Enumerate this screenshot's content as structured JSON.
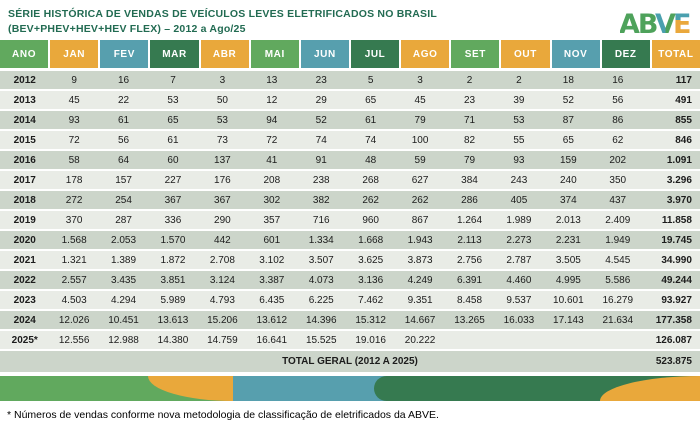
{
  "header": {
    "title_line1": "SÉRIE HISTÓRICA DE VENDAS DE VEÍCULOS LEVES ELETRIFICADOS NO BRASIL",
    "title_line2": "(BEV+PHEV+HEV+HEV FLEX) – 2012 a Ago/25",
    "logo_text": "ABVE"
  },
  "colors": {
    "green": "#61a95e",
    "orange": "#e9a83b",
    "teal": "#579fae",
    "dark_green": "#367a50",
    "title_green": "#226b52",
    "row_dark": "#ccd5ca",
    "row_light": "#e9ece6",
    "logo_green": "#4ea25b",
    "logo_teal": "#4aa0af",
    "logo_orange": "#eaa83c"
  },
  "chart_data": {
    "type": "table",
    "title": "SÉRIE HISTÓRICA DE VENDAS DE VEÍCULOS LEVES ELETRIFICADOS NO BRASIL (BEV+PHEV+HEV+HEV FLEX) – 2012 a Ago/25",
    "columns": [
      {
        "label": "ANO",
        "color": "green"
      },
      {
        "label": "JAN",
        "color": "orange"
      },
      {
        "label": "FEV",
        "color": "teal"
      },
      {
        "label": "MAR",
        "color": "dark_green"
      },
      {
        "label": "ABR",
        "color": "orange"
      },
      {
        "label": "MAI",
        "color": "green"
      },
      {
        "label": "JUN",
        "color": "teal"
      },
      {
        "label": "JUL",
        "color": "dark_green"
      },
      {
        "label": "AGO",
        "color": "orange"
      },
      {
        "label": "SET",
        "color": "green"
      },
      {
        "label": "OUT",
        "color": "orange"
      },
      {
        "label": "NOV",
        "color": "teal"
      },
      {
        "label": "DEZ",
        "color": "dark_green"
      },
      {
        "label": "TOTAL",
        "color": "orange"
      }
    ],
    "rows": [
      {
        "year": "2012",
        "values": [
          "9",
          "16",
          "7",
          "3",
          "13",
          "23",
          "5",
          "3",
          "2",
          "2",
          "18",
          "16"
        ],
        "total": "117"
      },
      {
        "year": "2013",
        "values": [
          "45",
          "22",
          "53",
          "50",
          "12",
          "29",
          "65",
          "45",
          "23",
          "39",
          "52",
          "56"
        ],
        "total": "491"
      },
      {
        "year": "2014",
        "values": [
          "93",
          "61",
          "65",
          "53",
          "94",
          "52",
          "61",
          "79",
          "71",
          "53",
          "87",
          "86"
        ],
        "total": "855"
      },
      {
        "year": "2015",
        "values": [
          "72",
          "56",
          "61",
          "73",
          "72",
          "74",
          "74",
          "100",
          "82",
          "55",
          "65",
          "62"
        ],
        "total": "846"
      },
      {
        "year": "2016",
        "values": [
          "58",
          "64",
          "60",
          "137",
          "41",
          "91",
          "48",
          "59",
          "79",
          "93",
          "159",
          "202"
        ],
        "total": "1.091"
      },
      {
        "year": "2017",
        "values": [
          "178",
          "157",
          "227",
          "176",
          "208",
          "238",
          "268",
          "627",
          "384",
          "243",
          "240",
          "350"
        ],
        "total": "3.296"
      },
      {
        "year": "2018",
        "values": [
          "272",
          "254",
          "367",
          "367",
          "302",
          "382",
          "262",
          "262",
          "286",
          "405",
          "374",
          "437"
        ],
        "total": "3.970"
      },
      {
        "year": "2019",
        "values": [
          "370",
          "287",
          "336",
          "290",
          "357",
          "716",
          "960",
          "867",
          "1.264",
          "1.989",
          "2.013",
          "2.409"
        ],
        "total": "11.858"
      },
      {
        "year": "2020",
        "values": [
          "1.568",
          "2.053",
          "1.570",
          "442",
          "601",
          "1.334",
          "1.668",
          "1.943",
          "2.113",
          "2.273",
          "2.231",
          "1.949"
        ],
        "total": "19.745"
      },
      {
        "year": "2021",
        "values": [
          "1.321",
          "1.389",
          "1.872",
          "2.708",
          "3.102",
          "3.507",
          "3.625",
          "3.873",
          "2.756",
          "2.787",
          "3.505",
          "4.545"
        ],
        "total": "34.990"
      },
      {
        "year": "2022",
        "values": [
          "2.557",
          "3.435",
          "3.851",
          "3.124",
          "3.387",
          "4.073",
          "3.136",
          "4.249",
          "6.391",
          "4.460",
          "4.995",
          "5.586"
        ],
        "total": "49.244"
      },
      {
        "year": "2023",
        "values": [
          "4.503",
          "4.294",
          "5.989",
          "4.793",
          "6.435",
          "6.225",
          "7.462",
          "9.351",
          "8.458",
          "9.537",
          "10.601",
          "16.279"
        ],
        "total": "93.927"
      },
      {
        "year": "2024",
        "values": [
          "12.026",
          "10.451",
          "13.613",
          "15.206",
          "13.612",
          "14.396",
          "15.312",
          "14.667",
          "13.265",
          "16.033",
          "17.143",
          "21.634"
        ],
        "total": "177.358"
      },
      {
        "year": "2025*",
        "values": [
          "12.556",
          "12.988",
          "14.380",
          "14.759",
          "16.641",
          "15.525",
          "19.016",
          "20.222",
          "",
          "",
          "",
          ""
        ],
        "total": "126.087"
      }
    ],
    "total_row": {
      "label": "TOTAL GERAL (2012 A 2025)",
      "value": "523.875"
    }
  },
  "footnote": "* Números de vendas conforme nova metodologia de classificação de eletrificados da ABVE."
}
